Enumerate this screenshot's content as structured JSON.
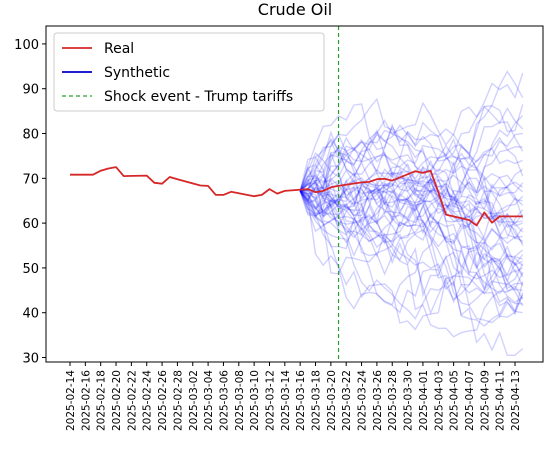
{
  "chart_data": {
    "type": "line",
    "title": "Crude Oil",
    "xlabel": "",
    "ylabel": "",
    "ylim": [
      29,
      104
    ],
    "yticks": [
      30,
      40,
      50,
      60,
      70,
      80,
      90,
      100
    ],
    "grid": false,
    "legend_position": "top-left",
    "x_tick_labels": [
      "2025-02-14",
      "2025-02-16",
      "2025-02-18",
      "2025-02-20",
      "2025-02-22",
      "2025-02-24",
      "2025-02-26",
      "2025-02-28",
      "2025-03-02",
      "2025-03-04",
      "2025-03-06",
      "2025-03-08",
      "2025-03-10",
      "2025-03-12",
      "2025-03-14",
      "2025-03-16",
      "2025-03-18",
      "2025-03-20",
      "2025-03-22",
      "2025-03-24",
      "2025-03-26",
      "2025-03-28",
      "2025-03-30",
      "2025-04-01",
      "2025-04-03",
      "2025-04-05",
      "2025-04-07",
      "2025-04-09",
      "2025-04-11",
      "2025-04-13"
    ],
    "legend": [
      {
        "label": "Real",
        "color": "#d62728",
        "style": "solid"
      },
      {
        "label": "Synthetic",
        "color": "#0000cc",
        "style": "solid"
      },
      {
        "label": "Shock event - Trump tariffs",
        "color": "#2ca02c",
        "style": "dashed"
      }
    ],
    "shock_event_date": "2025-03-21",
    "real_series": {
      "name": "Real",
      "color": "#d62728",
      "x": [
        "2025-02-14",
        "2025-02-17",
        "2025-02-18",
        "2025-02-19",
        "2025-02-20",
        "2025-02-21",
        "2025-02-24",
        "2025-02-25",
        "2025-02-26",
        "2025-02-27",
        "2025-02-28",
        "2025-03-03",
        "2025-03-04",
        "2025-03-05",
        "2025-03-06",
        "2025-03-07",
        "2025-03-10",
        "2025-03-11",
        "2025-03-12",
        "2025-03-13",
        "2025-03-14",
        "2025-03-17",
        "2025-03-18",
        "2025-03-19",
        "2025-03-20",
        "2025-03-21",
        "2025-03-24",
        "2025-03-25",
        "2025-03-26",
        "2025-03-27",
        "2025-03-28",
        "2025-03-31",
        "2025-04-01",
        "2025-04-02",
        "2025-04-03",
        "2025-04-04",
        "2025-04-07",
        "2025-04-08",
        "2025-04-09",
        "2025-04-10",
        "2025-04-11",
        "2025-04-14"
      ],
      "y": [
        70.8,
        70.8,
        71.7,
        72.2,
        72.5,
        70.5,
        70.6,
        69.0,
        68.8,
        70.3,
        69.8,
        68.4,
        68.3,
        66.3,
        66.3,
        67.0,
        66.0,
        66.3,
        67.6,
        66.6,
        67.2,
        67.6,
        66.9,
        67.2,
        68.0,
        68.3,
        69.1,
        69.2,
        69.8,
        69.9,
        69.5,
        71.6,
        71.2,
        71.7,
        66.9,
        61.9,
        60.7,
        59.5,
        62.4,
        60.1,
        61.5,
        61.5
      ]
    },
    "synthetic": {
      "name": "Synthetic",
      "color": "#0000ff",
      "opacity": 0.18,
      "start_date": "2025-03-16",
      "start_value": 67.2,
      "end_date": "2025-04-14",
      "paths_count": 50,
      "end_values": [
        93.5,
        88.0,
        86.5,
        84.0,
        81.0,
        80.0,
        77.0,
        76.0,
        74.0,
        72.0,
        70.5,
        69.0,
        68.0,
        67.0,
        66.0,
        65.0,
        64.0,
        63.0,
        62.0,
        61.0,
        60.5,
        60.0,
        59.0,
        58.0,
        57.0,
        56.0,
        55.5,
        55.0,
        54.0,
        53.0,
        52.0,
        51.5,
        51.0,
        50.5,
        50.0,
        49.0,
        48.5,
        48.0,
        47.0,
        46.5,
        46.0,
        45.0,
        44.5,
        44.0,
        43.5,
        43.0,
        42.0,
        41.5,
        40.0,
        32.0
      ],
      "max_reached": 101.0,
      "min_reached": 31.5
    }
  }
}
